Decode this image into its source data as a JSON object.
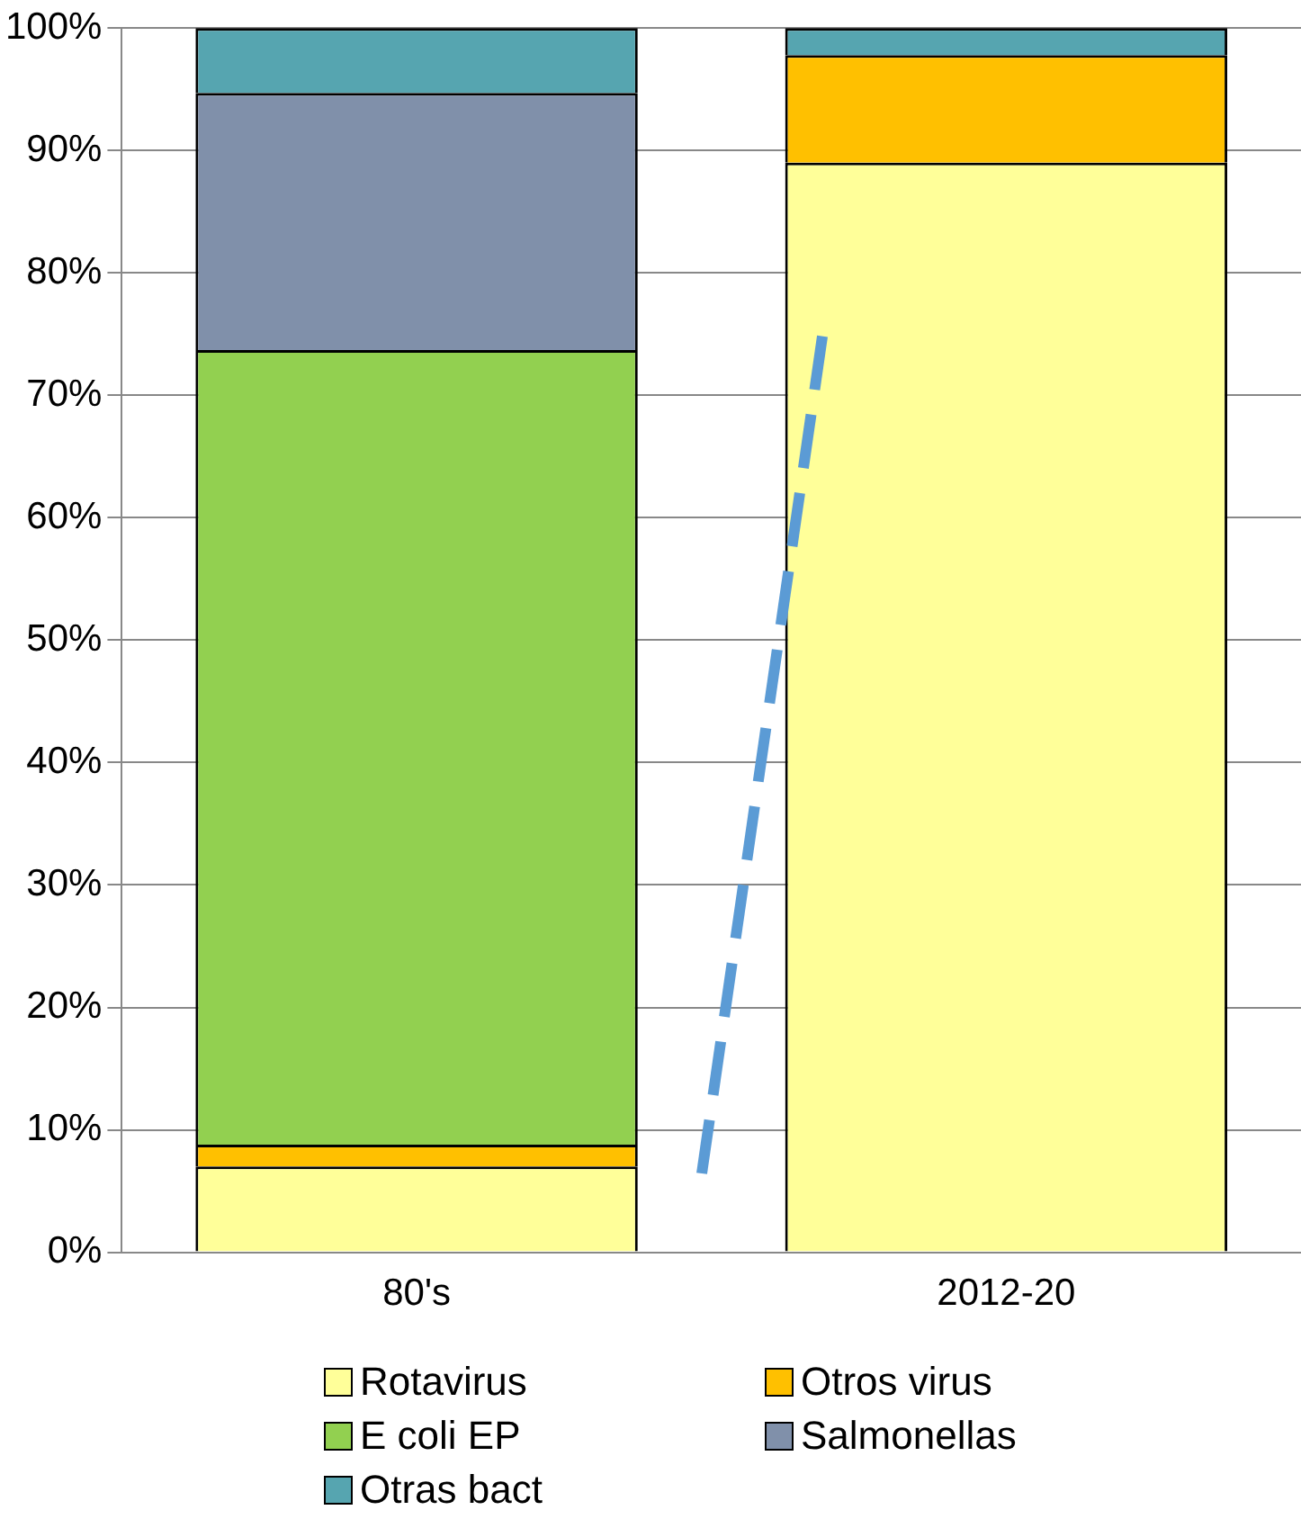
{
  "chart_data": {
    "type": "bar",
    "stacked": true,
    "categories": [
      "80's",
      "2012-20"
    ],
    "series": [
      {
        "name": "Rotavirus",
        "color": "#ffff99",
        "values": [
          7,
          89
        ]
      },
      {
        "name": "Otros virus",
        "color": "#ffc000",
        "values": [
          1.8,
          8.8
        ]
      },
      {
        "name": "E coli EP",
        "color": "#92d050",
        "values": [
          64.9,
          0
        ]
      },
      {
        "name": "Salmonellas",
        "color": "#8090aa",
        "values": [
          21,
          0
        ]
      },
      {
        "name": "Otras bact",
        "color": "#56a5b0",
        "values": [
          5.3,
          2.2
        ]
      }
    ],
    "ylim": [
      0,
      100
    ],
    "yticks": [
      {
        "value": 0,
        "label": "0%"
      },
      {
        "value": 10,
        "label": "10%"
      },
      {
        "value": 20,
        "label": "20%"
      },
      {
        "value": 30,
        "label": "30%"
      },
      {
        "value": 40,
        "label": "40%"
      },
      {
        "value": 50,
        "label": "50%"
      },
      {
        "value": 60,
        "label": "60%"
      },
      {
        "value": 70,
        "label": "70%"
      },
      {
        "value": 80,
        "label": "80%"
      },
      {
        "value": 90,
        "label": "90%"
      },
      {
        "value": 100,
        "label": "100%"
      }
    ],
    "grid": "y",
    "legend": "bottom"
  }
}
